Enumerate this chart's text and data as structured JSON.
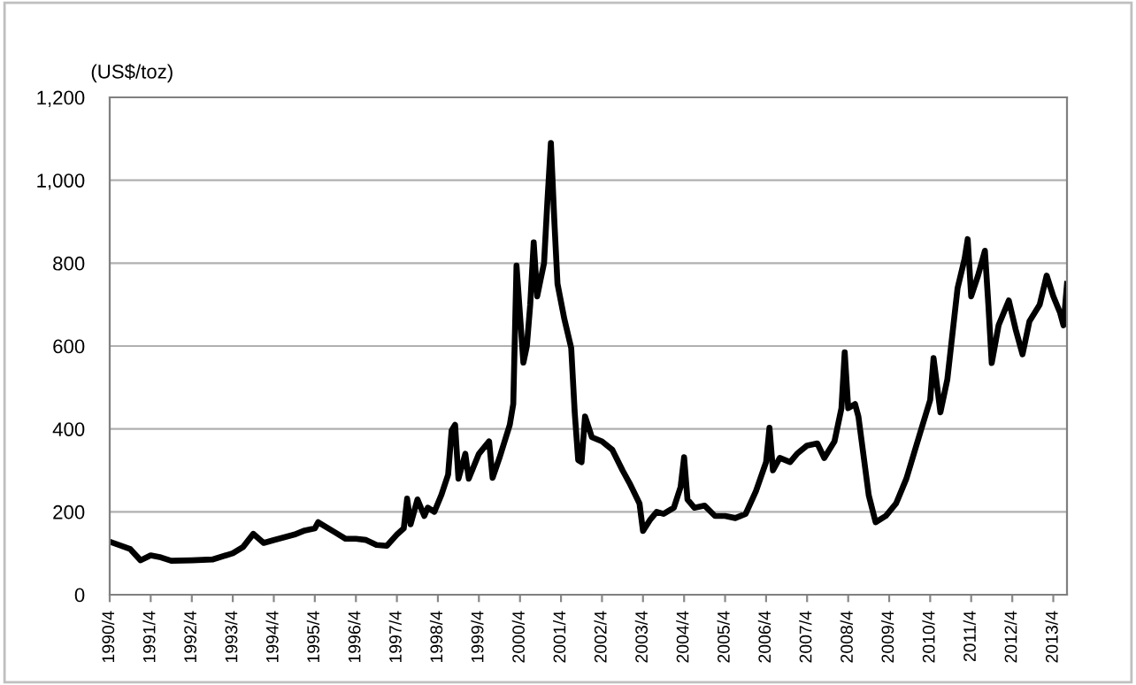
{
  "chart_data": {
    "type": "line",
    "ylabel": "(US$/toz)",
    "grid": "y",
    "marker": "none",
    "line_style": "solid",
    "xlim": [
      "1990-04",
      "2013-08"
    ],
    "xticks": [
      {
        "value": "1990-04",
        "label": "1990/4"
      },
      {
        "value": "1991-04",
        "label": "1991/4"
      },
      {
        "value": "1992-04",
        "label": "1992/4"
      },
      {
        "value": "1993-04",
        "label": "1993/4"
      },
      {
        "value": "1994-04",
        "label": "1994/4"
      },
      {
        "value": "1995-04",
        "label": "1995/4"
      },
      {
        "value": "1996-04",
        "label": "1996/4"
      },
      {
        "value": "1997-04",
        "label": "1997/4"
      },
      {
        "value": "1998-04",
        "label": "1998/4"
      },
      {
        "value": "1999-04",
        "label": "1999/4"
      },
      {
        "value": "2000-04",
        "label": "2000/4"
      },
      {
        "value": "2001-04",
        "label": "2001/4"
      },
      {
        "value": "2002-04",
        "label": "2002/4"
      },
      {
        "value": "2003-04",
        "label": "2003/4"
      },
      {
        "value": "2004-04",
        "label": "2004/4"
      },
      {
        "value": "2005-04",
        "label": "2005/4"
      },
      {
        "value": "2006-04",
        "label": "2006/4"
      },
      {
        "value": "2007-04",
        "label": "2007/4"
      },
      {
        "value": "2008-04",
        "label": "2008/4"
      },
      {
        "value": "2009-04",
        "label": "2009/4"
      },
      {
        "value": "2010-04",
        "label": "2010/4"
      },
      {
        "value": "2011-04",
        "label": "2011/4"
      },
      {
        "value": "2012-04",
        "label": "2012/4"
      },
      {
        "value": "2013-04",
        "label": "2013/4"
      }
    ],
    "ylim": [
      0,
      1200
    ],
    "yticks": [
      0,
      200,
      400,
      600,
      800,
      {
        "value": 1000,
        "label": "1,000"
      },
      {
        "value": 1200,
        "label": "1,200"
      }
    ],
    "x": [
      "1990-04",
      "1990-10",
      "1991-01",
      "1991-04",
      "1991-07",
      "1991-10",
      "1992-04",
      "1992-10",
      "1993-04",
      "1993-07",
      "1993-10",
      "1994-01",
      "1994-04",
      "1994-10",
      "1995-01",
      "1995-04",
      "1995-05",
      "1995-10",
      "1996-01",
      "1996-04",
      "1996-07",
      "1996-10",
      "1997-01",
      "1997-04",
      "1997-06",
      "1997-07",
      "1997-08",
      "1997-10",
      "1997-12",
      "1998-01",
      "1998-03",
      "1998-05",
      "1998-07",
      "1998-08",
      "1998-09",
      "1998-10",
      "1998-12",
      "1999-01",
      "1999-04",
      "1999-07",
      "1999-08",
      "1999-10",
      "2000-01",
      "2000-02",
      "2000-03",
      "2000-05",
      "2000-06",
      "2000-07",
      "2000-08",
      "2000-09",
      "2000-10",
      "2000-11",
      "2000-12",
      "2001-01",
      "2001-02",
      "2001-03",
      "2001-05",
      "2001-07",
      "2001-08",
      "2001-09",
      "2001-10",
      "2001-11",
      "2002-01",
      "2002-04",
      "2002-07",
      "2002-10",
      "2002-12",
      "2003-01",
      "2003-03",
      "2003-04",
      "2003-06",
      "2003-08",
      "2003-10",
      "2004-01",
      "2004-03",
      "2004-04",
      "2004-05",
      "2004-07",
      "2004-10",
      "2005-01",
      "2005-04",
      "2005-07",
      "2005-10",
      "2006-01",
      "2006-04",
      "2006-05",
      "2006-06",
      "2006-08",
      "2006-11",
      "2007-01",
      "2007-04",
      "2007-07",
      "2007-09",
      "2007-12",
      "2008-02",
      "2008-03",
      "2008-04",
      "2008-06",
      "2008-07",
      "2008-10",
      "2008-12",
      "2009-03",
      "2009-06",
      "2009-09",
      "2010-01",
      "2010-04",
      "2010-05",
      "2010-07",
      "2010-09",
      "2010-12",
      "2011-02",
      "2011-03",
      "2011-04",
      "2011-06",
      "2011-08",
      "2011-09",
      "2011-10",
      "2011-12",
      "2012-03",
      "2012-05",
      "2012-07",
      "2012-09",
      "2012-12",
      "2013-02",
      "2013-04",
      "2013-06",
      "2013-07",
      "2013-08"
    ],
    "series": [
      {
        "color": "#000000",
        "values": [
          128,
          110,
          83,
          95,
          90,
          82,
          83,
          85,
          100,
          115,
          147,
          125,
          132,
          145,
          155,
          160,
          175,
          150,
          135,
          135,
          132,
          120,
          118,
          145,
          160,
          232,
          170,
          230,
          190,
          210,
          200,
          240,
          290,
          396,
          410,
          280,
          340,
          280,
          340,
          370,
          282,
          330,
          410,
          460,
          794,
          560,
          600,
          700,
          850,
          720,
          760,
          800,
          950,
          1090,
          900,
          750,
          665,
          595,
          440,
          325,
          320,
          430,
          380,
          370,
          350,
          300,
          270,
          253,
          220,
          154,
          180,
          200,
          195,
          210,
          260,
          332,
          230,
          210,
          215,
          190,
          190,
          185,
          195,
          250,
          320,
          403,
          300,
          330,
          320,
          340,
          360,
          365,
          330,
          370,
          450,
          585,
          450,
          460,
          430,
          240,
          175,
          190,
          220,
          280,
          390,
          470,
          571,
          440,
          520,
          740,
          810,
          858,
          720,
          770,
          830,
          700,
          559,
          650,
          710,
          640,
          580,
          660,
          700,
          770,
          720,
          680,
          650,
          750
        ]
      }
    ]
  }
}
